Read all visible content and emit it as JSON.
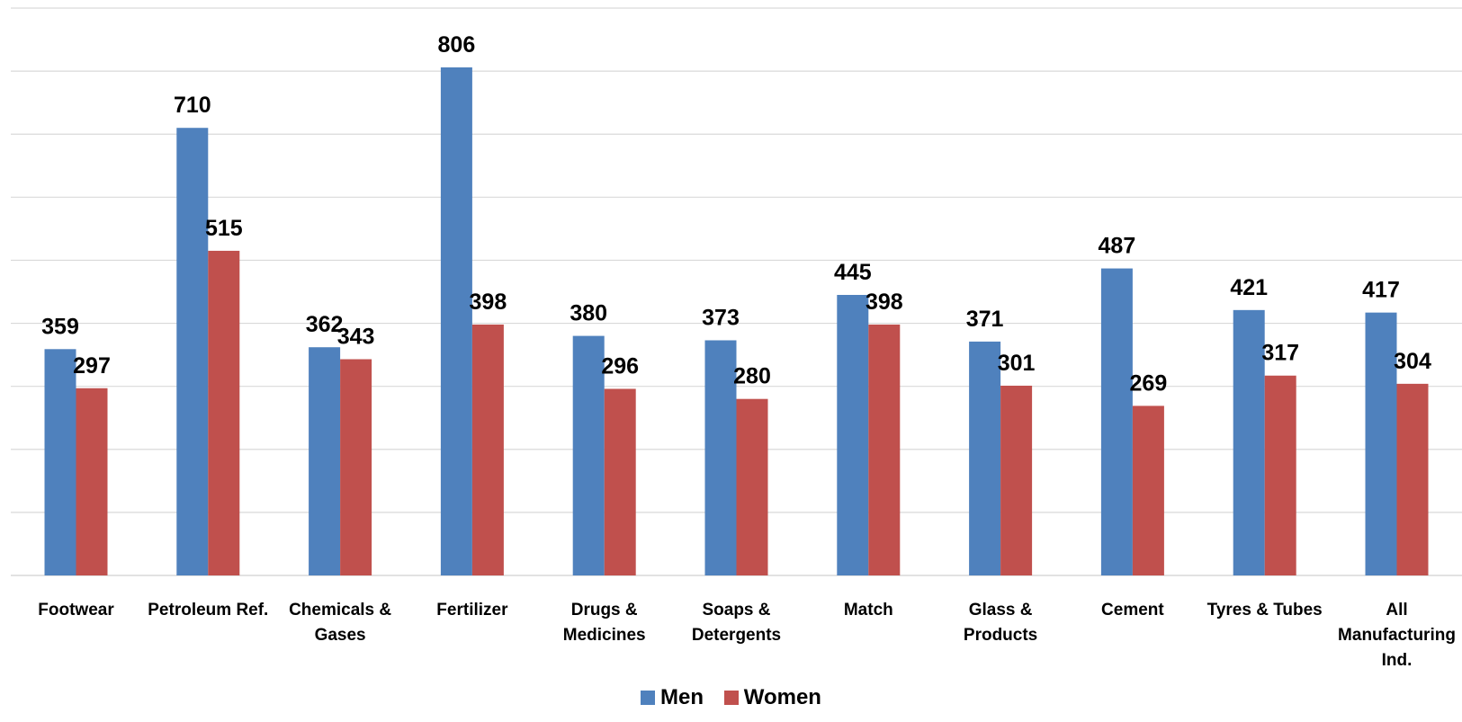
{
  "chart_data": {
    "type": "bar",
    "categories": [
      "Footwear",
      "Petroleum Ref.",
      "Chemicals & Gases",
      "Fertilizer",
      "Drugs & Medicines",
      "Soaps & Detergents",
      "Match",
      "Glass & Products",
      "Cement",
      "Tyres & Tubes",
      "All Manufacturing Ind."
    ],
    "category_lines": [
      [
        "Footwear"
      ],
      [
        "Petroleum Ref."
      ],
      [
        "Chemicals &",
        "Gases"
      ],
      [
        "Fertilizer"
      ],
      [
        "Drugs &",
        "Medicines"
      ],
      [
        "Soaps &",
        "Detergents"
      ],
      [
        "Match"
      ],
      [
        "Glass &",
        "Products"
      ],
      [
        "Cement"
      ],
      [
        "Tyres & Tubes"
      ],
      [
        "All",
        "Manufacturing",
        "Ind."
      ]
    ],
    "series": [
      {
        "name": "Men",
        "color": "#4F81BD",
        "values": [
          359,
          710,
          362,
          806,
          380,
          373,
          445,
          371,
          487,
          421,
          417
        ]
      },
      {
        "name": "Women",
        "color": "#C0504D",
        "values": [
          297,
          515,
          343,
          398,
          296,
          280,
          398,
          301,
          269,
          317,
          304
        ]
      }
    ],
    "title": "",
    "xlabel": "",
    "ylabel": "",
    "ylim": [
      0,
      900
    ],
    "ytick_step": 100,
    "grid": true,
    "legend_position": "bottom"
  }
}
